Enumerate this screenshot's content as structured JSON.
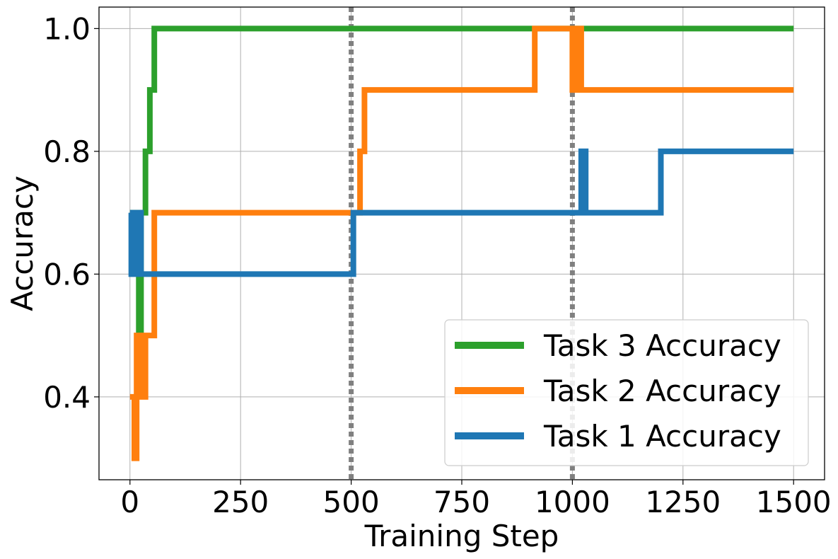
{
  "chart_data": {
    "type": "line",
    "xlabel": "Training Step",
    "ylabel": "Accuracy",
    "xlim": [
      -70,
      1570
    ],
    "ylim": [
      0.265,
      1.035
    ],
    "xticks": [
      0,
      250,
      500,
      750,
      1000,
      1250,
      1500
    ],
    "xtick_labels": [
      "0",
      "250",
      "500",
      "750",
      "1000",
      "1250",
      "1500"
    ],
    "yticks": [
      0.4,
      0.6,
      0.8,
      1.0
    ],
    "ytick_labels": [
      "0.4",
      "0.6",
      "0.8",
      "1.0"
    ],
    "grid": true,
    "legend_position": "lower-right",
    "task_boundaries": [
      500,
      1000
    ],
    "boundary_color": "#808080",
    "series": [
      {
        "name": "Task 3 Accuracy",
        "color": "#2ca02c",
        "x": [
          0,
          20,
          20,
          25,
          25,
          35,
          35,
          45,
          45,
          55,
          55,
          1500
        ],
        "y": [
          0.7,
          0.7,
          0.5,
          0.5,
          0.7,
          0.7,
          0.8,
          0.8,
          0.9,
          0.9,
          1.0,
          1.0
        ]
      },
      {
        "name": "Task 2 Accuracy",
        "color": "#ff7f0e",
        "x": [
          0,
          10,
          10,
          15,
          15,
          25,
          25,
          35,
          35,
          55,
          55,
          520,
          520,
          530,
          530,
          915,
          915,
          1000,
          1000,
          1005,
          1005,
          1010,
          1010,
          1015,
          1015,
          1020,
          1020,
          1500
        ],
        "y": [
          0.4,
          0.4,
          0.3,
          0.3,
          0.5,
          0.5,
          0.4,
          0.4,
          0.5,
          0.5,
          0.7,
          0.7,
          0.8,
          0.8,
          0.9,
          0.9,
          1.0,
          1.0,
          0.9,
          0.9,
          1.0,
          1.0,
          0.9,
          0.9,
          1.0,
          1.0,
          0.9,
          0.9
        ]
      },
      {
        "name": "Task 1 Accuracy",
        "color": "#1f77b4",
        "x": [
          0,
          3,
          3,
          8,
          8,
          14,
          14,
          20,
          20,
          25,
          25,
          505,
          505,
          1020,
          1020,
          1030,
          1030,
          1200,
          1200,
          1500
        ],
        "y": [
          0.7,
          0.7,
          0.6,
          0.6,
          0.7,
          0.7,
          0.6,
          0.6,
          0.7,
          0.7,
          0.6,
          0.6,
          0.7,
          0.7,
          0.8,
          0.8,
          0.7,
          0.7,
          0.8,
          0.8
        ]
      }
    ]
  }
}
